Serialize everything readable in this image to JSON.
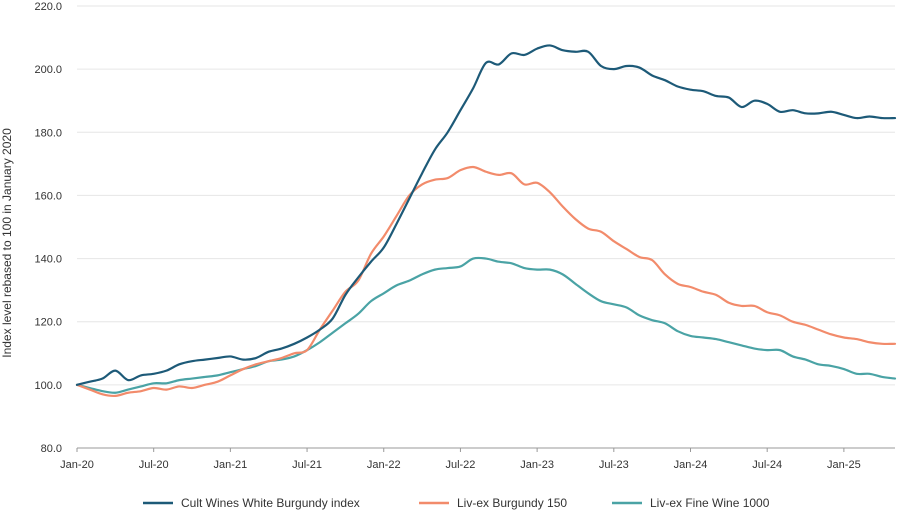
{
  "chart_data": {
    "type": "line",
    "title": "",
    "xlabel": "",
    "ylabel": "Index level rebased to 100 in January 2020",
    "ylim": [
      80,
      220
    ],
    "yticks": [
      "80.0",
      "100.0",
      "120.0",
      "140.0",
      "160.0",
      "180.0",
      "200.0",
      "220.0"
    ],
    "ytick_values": [
      80,
      100,
      120,
      140,
      160,
      180,
      200,
      220
    ],
    "xtick_labels": [
      "Jan-20",
      "Jul-20",
      "Jan-21",
      "Jul-21",
      "Jan-22",
      "Jul-22",
      "Jan-23",
      "Jul-23",
      "Jan-24",
      "Jul-24",
      "Jan-25"
    ],
    "xtick_months": [
      0,
      6,
      12,
      18,
      24,
      30,
      36,
      42,
      48,
      54,
      60
    ],
    "x": [
      "2020-01",
      "2020-02",
      "2020-03",
      "2020-04",
      "2020-05",
      "2020-06",
      "2020-07",
      "2020-08",
      "2020-09",
      "2020-10",
      "2020-11",
      "2020-12",
      "2021-01",
      "2021-02",
      "2021-03",
      "2021-04",
      "2021-05",
      "2021-06",
      "2021-07",
      "2021-08",
      "2021-09",
      "2021-10",
      "2021-11",
      "2021-12",
      "2022-01",
      "2022-02",
      "2022-03",
      "2022-04",
      "2022-05",
      "2022-06",
      "2022-07",
      "2022-08",
      "2022-09",
      "2022-10",
      "2022-11",
      "2022-12",
      "2023-01",
      "2023-02",
      "2023-03",
      "2023-04",
      "2023-05",
      "2023-06",
      "2023-07",
      "2023-08",
      "2023-09",
      "2023-10",
      "2023-11",
      "2023-12",
      "2024-01",
      "2024-02",
      "2024-03",
      "2024-04",
      "2024-05",
      "2024-06",
      "2024-07",
      "2024-08",
      "2024-09",
      "2024-10",
      "2024-11",
      "2024-12",
      "2025-01",
      "2025-02",
      "2025-03",
      "2025-04",
      "2025-05"
    ],
    "grid": "horizontal",
    "legend_position": "bottom",
    "series": [
      {
        "name": "Cult Wines White Burgundy index",
        "color": "#1d5a78",
        "values": [
          100.0,
          101.0,
          102.0,
          104.5,
          101.5,
          103.0,
          103.5,
          104.5,
          106.5,
          107.5,
          108.0,
          108.5,
          109.0,
          108.0,
          108.5,
          110.5,
          111.5,
          113.0,
          115.0,
          117.5,
          121.0,
          128.5,
          134.0,
          139.0,
          143.5,
          151.0,
          159.0,
          167.0,
          174.5,
          180.0,
          187.0,
          194.0,
          202.0,
          201.5,
          205.0,
          204.5,
          206.5,
          207.5,
          206.0,
          205.5,
          205.5,
          201.0,
          200.0,
          201.0,
          200.5,
          198.0,
          196.5,
          194.5,
          193.5,
          193.0,
          191.5,
          191.0,
          188.0,
          190.0,
          189.0,
          186.5,
          187.0,
          186.0,
          186.0,
          186.5,
          185.5,
          184.5,
          185.0,
          184.5,
          184.5
        ]
      },
      {
        "name": "Liv-ex Burgundy 150",
        "color": "#f28b6b",
        "values": [
          100.0,
          98.5,
          97.0,
          96.5,
          97.5,
          98.0,
          99.0,
          98.5,
          99.5,
          99.0,
          100.0,
          101.0,
          103.0,
          105.0,
          106.5,
          107.5,
          108.5,
          110.0,
          111.0,
          117.5,
          123.5,
          129.5,
          133.0,
          141.5,
          147.0,
          153.5,
          160.0,
          163.5,
          165.0,
          165.5,
          168.0,
          169.0,
          167.5,
          166.5,
          167.0,
          163.5,
          164.0,
          161.0,
          156.5,
          152.5,
          149.5,
          148.5,
          145.5,
          143.0,
          140.5,
          139.5,
          135.0,
          132.0,
          131.0,
          129.5,
          128.5,
          126.0,
          125.0,
          125.0,
          123.0,
          122.0,
          120.0,
          119.0,
          117.5,
          116.0,
          115.0,
          114.5,
          113.5,
          113.0,
          113.0
        ]
      },
      {
        "name": "Liv-ex Fine Wine 1000",
        "color": "#4aa3a5",
        "values": [
          100.0,
          99.0,
          98.0,
          97.5,
          98.5,
          99.5,
          100.5,
          100.5,
          101.5,
          102.0,
          102.5,
          103.0,
          104.0,
          105.0,
          106.0,
          107.5,
          108.0,
          109.0,
          111.0,
          113.5,
          116.5,
          119.5,
          122.5,
          126.5,
          129.0,
          131.5,
          133.0,
          135.0,
          136.5,
          137.0,
          137.5,
          140.0,
          140.0,
          139.0,
          138.5,
          137.0,
          136.5,
          136.5,
          135.0,
          132.0,
          129.0,
          126.5,
          125.5,
          124.5,
          122.0,
          120.5,
          119.5,
          117.0,
          115.5,
          115.0,
          114.5,
          113.5,
          112.5,
          111.5,
          111.0,
          111.0,
          109.0,
          108.0,
          106.5,
          106.0,
          105.0,
          103.5,
          103.5,
          102.5,
          102.0
        ]
      }
    ]
  }
}
